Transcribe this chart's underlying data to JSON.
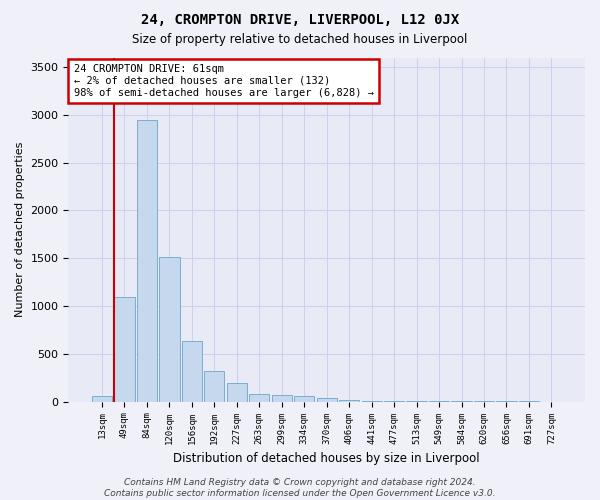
{
  "title": "24, CROMPTON DRIVE, LIVERPOOL, L12 0JX",
  "subtitle": "Size of property relative to detached houses in Liverpool",
  "xlabel": "Distribution of detached houses by size in Liverpool",
  "ylabel": "Number of detached properties",
  "bar_labels": [
    "13sqm",
    "49sqm",
    "84sqm",
    "120sqm",
    "156sqm",
    "192sqm",
    "227sqm",
    "263sqm",
    "299sqm",
    "334sqm",
    "370sqm",
    "406sqm",
    "441sqm",
    "477sqm",
    "513sqm",
    "549sqm",
    "584sqm",
    "620sqm",
    "656sqm",
    "691sqm",
    "727sqm"
  ],
  "bar_values": [
    55,
    1100,
    2950,
    1510,
    635,
    325,
    195,
    85,
    75,
    55,
    35,
    15,
    10,
    8,
    5,
    5,
    5,
    5,
    5,
    3,
    2
  ],
  "bar_color": "#c5d8ee",
  "bar_edge_color": "#7aadd4",
  "grid_color": "#d0d0ee",
  "background_color": "#e8eaf6",
  "fig_background_color": "#f0f0f8",
  "vline_color": "#cc0000",
  "vline_x_index": 1,
  "annotation_text": "24 CROMPTON DRIVE: 61sqm\n← 2% of detached houses are smaller (132)\n98% of semi-detached houses are larger (6,828) →",
  "annotation_box_color": "#ffffff",
  "annotation_box_edge": "#cc0000",
  "ylim": [
    0,
    3600
  ],
  "yticks": [
    0,
    500,
    1000,
    1500,
    2000,
    2500,
    3000,
    3500
  ],
  "footer": "Contains HM Land Registry data © Crown copyright and database right 2024.\nContains public sector information licensed under the Open Government Licence v3.0."
}
